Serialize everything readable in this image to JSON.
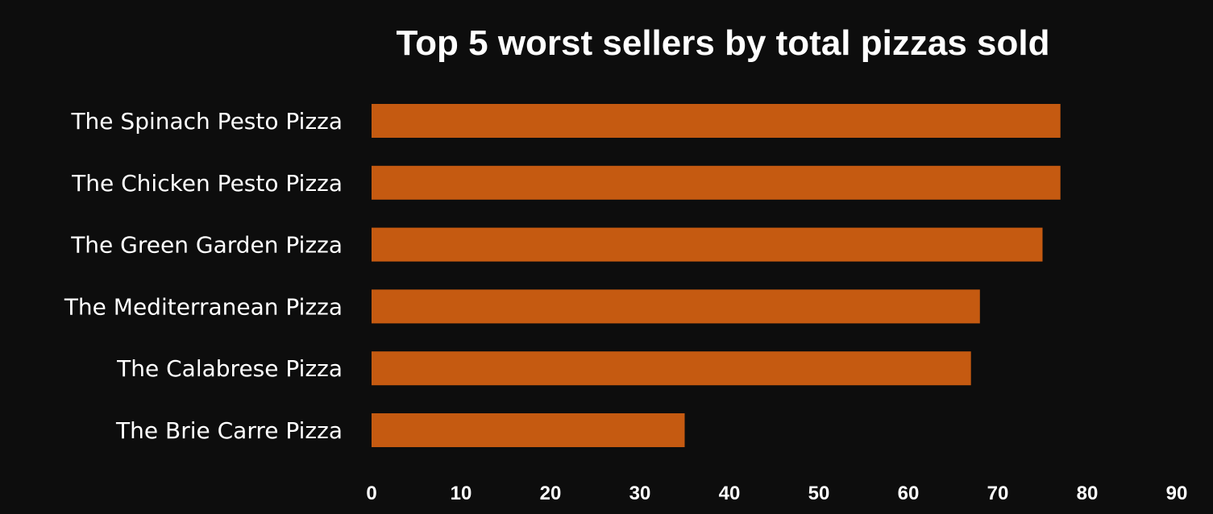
{
  "chart_data": {
    "type": "bar",
    "orientation": "horizontal",
    "title": "Top 5 worst  sellers by total pizzas sold",
    "categories": [
      "The Spinach Pesto Pizza",
      "The Chicken Pesto Pizza",
      "The Green Garden Pizza",
      "The Mediterranean Pizza",
      "The Calabrese Pizza",
      "The Brie Carre Pizza"
    ],
    "values": [
      77,
      77,
      75,
      68,
      67,
      35
    ],
    "xlim": [
      0,
      90
    ],
    "xticks": [
      "0",
      "10",
      "20",
      "30",
      "40",
      "50",
      "60",
      "70",
      "80",
      "90"
    ],
    "grid": false,
    "legend": "none",
    "colors": {
      "background": "#0d0d0d",
      "bar": "#c55a11",
      "text": "#ffffff"
    }
  }
}
